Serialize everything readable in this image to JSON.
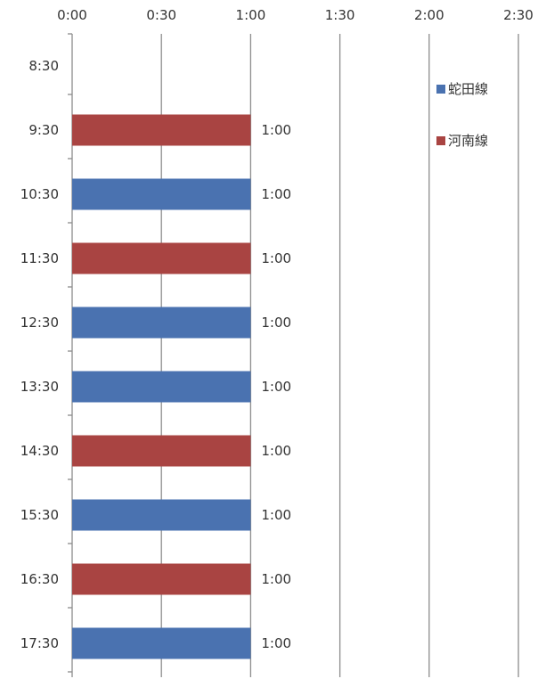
{
  "chart_data": {
    "type": "bar",
    "orientation": "horizontal",
    "title": "",
    "xlabel": "",
    "ylabel": "",
    "x_unit": "minutes",
    "xlim": [
      0,
      150
    ],
    "x_ticks": [
      {
        "value": 0,
        "label": "0:00"
      },
      {
        "value": 30,
        "label": "0:30"
      },
      {
        "value": 60,
        "label": "1:00"
      },
      {
        "value": 90,
        "label": "1:30"
      },
      {
        "value": 120,
        "label": "2:00"
      },
      {
        "value": 150,
        "label": "2:30"
      }
    ],
    "x_axis_position": "top",
    "grid": "vertical",
    "legend_position": "right",
    "categories": [
      "8:30",
      "9:30",
      "10:30",
      "11:30",
      "12:30",
      "13:30",
      "14:30",
      "15:30",
      "16:30",
      "17:30"
    ],
    "series": [
      {
        "name": "蛇田線",
        "color": "#4A72B0",
        "values": [
          null,
          null,
          60,
          null,
          60,
          60,
          null,
          60,
          null,
          60
        ]
      },
      {
        "name": "河南線",
        "color": "#A94442",
        "values": [
          null,
          60,
          null,
          60,
          null,
          null,
          60,
          null,
          60,
          null
        ]
      }
    ],
    "data_labels": [
      "",
      "1:00",
      "1:00",
      "1:00",
      "1:00",
      "1:00",
      "1:00",
      "1:00",
      "1:00",
      "1:00"
    ]
  }
}
